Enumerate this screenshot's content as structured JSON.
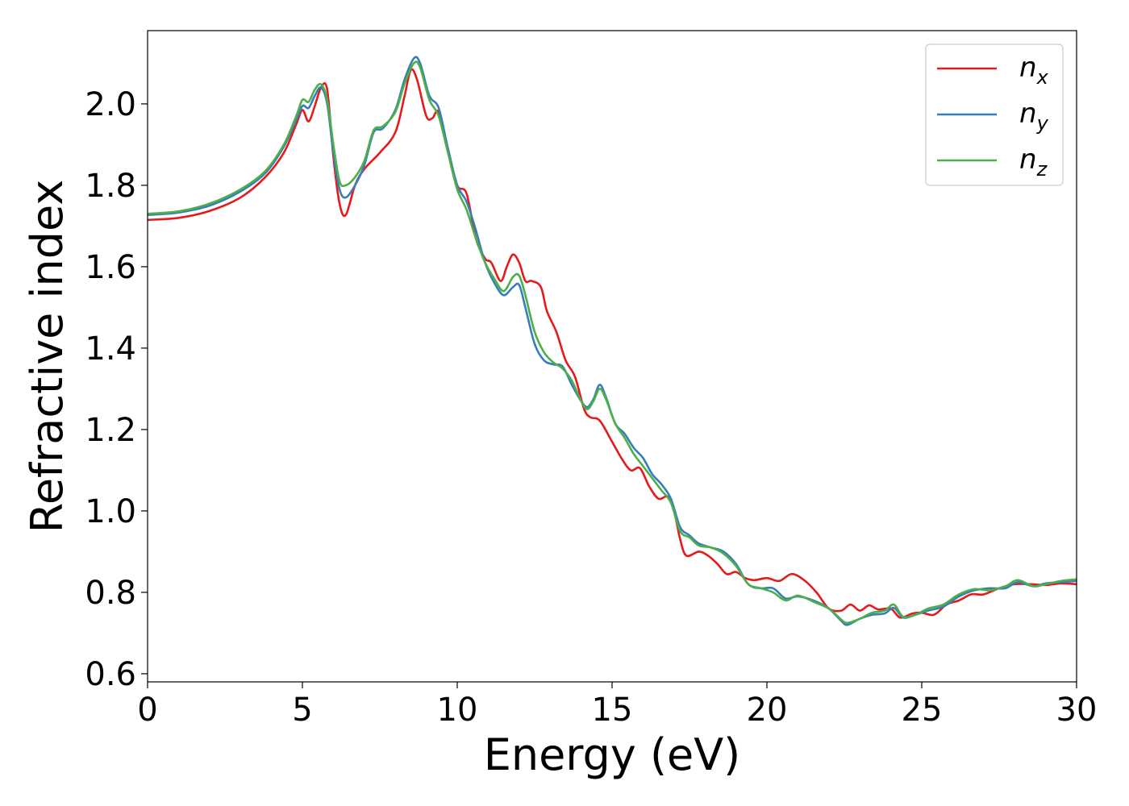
{
  "chart_data": {
    "type": "line",
    "xlabel": "Energy (eV)",
    "ylabel": "Refractive index",
    "xlim": [
      0,
      30
    ],
    "ylim": [
      0.58,
      2.18
    ],
    "x_ticks": [
      0,
      5,
      10,
      15,
      20,
      25,
      30
    ],
    "y_ticks": [
      0.6,
      0.8,
      1.0,
      1.2,
      1.4,
      1.6,
      1.8,
      2.0
    ],
    "x_tick_labels": [
      "0",
      "5",
      "10",
      "15",
      "20",
      "25",
      "30"
    ],
    "y_tick_labels": [
      "0.6",
      "0.8",
      "1.0",
      "1.2",
      "1.4",
      "1.6",
      "1.8",
      "2.0"
    ],
    "grid": false,
    "legend_position": "top-right",
    "series": [
      {
        "name": "n_x",
        "legend_base": "n",
        "legend_sub": "x",
        "color": "#e41a1c",
        "points": [
          [
            0,
            1.715
          ],
          [
            1,
            1.72
          ],
          [
            2,
            1.737
          ],
          [
            3,
            1.77
          ],
          [
            3.8,
            1.82
          ],
          [
            4.4,
            1.88
          ],
          [
            4.8,
            1.95
          ],
          [
            5.0,
            1.985
          ],
          [
            5.2,
            1.957
          ],
          [
            5.4,
            1.995
          ],
          [
            5.6,
            2.04
          ],
          [
            5.8,
            2.035
          ],
          [
            6.0,
            1.87
          ],
          [
            6.2,
            1.755
          ],
          [
            6.4,
            1.727
          ],
          [
            6.7,
            1.8
          ],
          [
            7.0,
            1.84
          ],
          [
            7.5,
            1.88
          ],
          [
            8.0,
            1.93
          ],
          [
            8.3,
            2.02
          ],
          [
            8.5,
            2.083
          ],
          [
            8.7,
            2.06
          ],
          [
            9.0,
            1.97
          ],
          [
            9.2,
            1.965
          ],
          [
            9.4,
            1.98
          ],
          [
            9.7,
            1.89
          ],
          [
            10.0,
            1.8
          ],
          [
            10.3,
            1.78
          ],
          [
            10.6,
            1.67
          ],
          [
            10.9,
            1.62
          ],
          [
            11.1,
            1.61
          ],
          [
            11.4,
            1.565
          ],
          [
            11.6,
            1.6
          ],
          [
            11.8,
            1.63
          ],
          [
            12.0,
            1.61
          ],
          [
            12.2,
            1.565
          ],
          [
            12.4,
            1.565
          ],
          [
            12.7,
            1.55
          ],
          [
            12.9,
            1.49
          ],
          [
            13.2,
            1.44
          ],
          [
            13.5,
            1.37
          ],
          [
            13.8,
            1.33
          ],
          [
            14.1,
            1.25
          ],
          [
            14.3,
            1.23
          ],
          [
            14.6,
            1.222
          ],
          [
            15.0,
            1.17
          ],
          [
            15.3,
            1.13
          ],
          [
            15.6,
            1.1
          ],
          [
            15.9,
            1.105
          ],
          [
            16.2,
            1.06
          ],
          [
            16.5,
            1.03
          ],
          [
            16.8,
            1.035
          ],
          [
            17.0,
            1.0
          ],
          [
            17.2,
            0.93
          ],
          [
            17.4,
            0.89
          ],
          [
            17.8,
            0.9
          ],
          [
            18.1,
            0.89
          ],
          [
            18.4,
            0.87
          ],
          [
            18.7,
            0.845
          ],
          [
            19.0,
            0.85
          ],
          [
            19.3,
            0.835
          ],
          [
            19.6,
            0.83
          ],
          [
            20.0,
            0.835
          ],
          [
            20.4,
            0.828
          ],
          [
            20.8,
            0.845
          ],
          [
            21.2,
            0.83
          ],
          [
            21.6,
            0.8
          ],
          [
            22.0,
            0.76
          ],
          [
            22.4,
            0.755
          ],
          [
            22.7,
            0.77
          ],
          [
            23.0,
            0.755
          ],
          [
            23.3,
            0.768
          ],
          [
            23.6,
            0.758
          ],
          [
            24.0,
            0.76
          ],
          [
            24.3,
            0.738
          ],
          [
            24.7,
            0.748
          ],
          [
            25.0,
            0.75
          ],
          [
            25.4,
            0.745
          ],
          [
            25.8,
            0.77
          ],
          [
            26.2,
            0.78
          ],
          [
            26.6,
            0.795
          ],
          [
            27.0,
            0.795
          ],
          [
            27.5,
            0.81
          ],
          [
            28.0,
            0.82
          ],
          [
            28.5,
            0.82
          ],
          [
            29.0,
            0.818
          ],
          [
            29.5,
            0.822
          ],
          [
            30.0,
            0.82
          ]
        ]
      },
      {
        "name": "n_y",
        "legend_base": "n",
        "legend_sub": "y",
        "color": "#377eb8",
        "points": [
          [
            0,
            1.727
          ],
          [
            1,
            1.733
          ],
          [
            2,
            1.75
          ],
          [
            3,
            1.785
          ],
          [
            3.8,
            1.83
          ],
          [
            4.4,
            1.895
          ],
          [
            4.8,
            1.96
          ],
          [
            5.0,
            1.995
          ],
          [
            5.2,
            1.99
          ],
          [
            5.4,
            2.02
          ],
          [
            5.6,
            2.04
          ],
          [
            5.8,
            2.0
          ],
          [
            6.0,
            1.88
          ],
          [
            6.2,
            1.79
          ],
          [
            6.4,
            1.77
          ],
          [
            6.7,
            1.8
          ],
          [
            7.0,
            1.85
          ],
          [
            7.3,
            1.93
          ],
          [
            7.6,
            1.94
          ],
          [
            8.0,
            1.985
          ],
          [
            8.3,
            2.06
          ],
          [
            8.6,
            2.112
          ],
          [
            8.8,
            2.1
          ],
          [
            9.1,
            2.02
          ],
          [
            9.4,
            1.99
          ],
          [
            9.7,
            1.89
          ],
          [
            10.0,
            1.8
          ],
          [
            10.3,
            1.76
          ],
          [
            10.6,
            1.69
          ],
          [
            10.9,
            1.61
          ],
          [
            11.2,
            1.56
          ],
          [
            11.5,
            1.53
          ],
          [
            11.8,
            1.55
          ],
          [
            12.0,
            1.555
          ],
          [
            12.2,
            1.5
          ],
          [
            12.5,
            1.41
          ],
          [
            12.8,
            1.37
          ],
          [
            13.1,
            1.36
          ],
          [
            13.4,
            1.355
          ],
          [
            13.7,
            1.31
          ],
          [
            14.0,
            1.27
          ],
          [
            14.2,
            1.255
          ],
          [
            14.4,
            1.275
          ],
          [
            14.6,
            1.31
          ],
          [
            14.8,
            1.28
          ],
          [
            15.1,
            1.215
          ],
          [
            15.4,
            1.19
          ],
          [
            15.7,
            1.155
          ],
          [
            16.0,
            1.13
          ],
          [
            16.3,
            1.09
          ],
          [
            16.6,
            1.065
          ],
          [
            16.9,
            1.03
          ],
          [
            17.2,
            0.96
          ],
          [
            17.5,
            0.94
          ],
          [
            17.8,
            0.92
          ],
          [
            18.2,
            0.91
          ],
          [
            18.6,
            0.9
          ],
          [
            19.0,
            0.87
          ],
          [
            19.4,
            0.82
          ],
          [
            19.8,
            0.81
          ],
          [
            20.2,
            0.81
          ],
          [
            20.6,
            0.785
          ],
          [
            21.0,
            0.79
          ],
          [
            21.5,
            0.78
          ],
          [
            22.0,
            0.76
          ],
          [
            22.4,
            0.73
          ],
          [
            22.6,
            0.72
          ],
          [
            23.0,
            0.735
          ],
          [
            23.4,
            0.745
          ],
          [
            23.8,
            0.748
          ],
          [
            24.1,
            0.762
          ],
          [
            24.4,
            0.738
          ],
          [
            24.8,
            0.745
          ],
          [
            25.2,
            0.755
          ],
          [
            25.7,
            0.765
          ],
          [
            26.2,
            0.79
          ],
          [
            26.7,
            0.805
          ],
          [
            27.2,
            0.81
          ],
          [
            27.7,
            0.81
          ],
          [
            28.1,
            0.825
          ],
          [
            28.6,
            0.815
          ],
          [
            29.0,
            0.822
          ],
          [
            29.5,
            0.825
          ],
          [
            30.0,
            0.828
          ]
        ]
      },
      {
        "name": "n_z",
        "legend_base": "n",
        "legend_sub": "z",
        "color": "#4daf4a",
        "points": [
          [
            0,
            1.73
          ],
          [
            1,
            1.736
          ],
          [
            2,
            1.755
          ],
          [
            3,
            1.79
          ],
          [
            3.8,
            1.835
          ],
          [
            4.4,
            1.9
          ],
          [
            4.8,
            1.97
          ],
          [
            5.0,
            2.01
          ],
          [
            5.2,
            2.005
          ],
          [
            5.4,
            2.035
          ],
          [
            5.6,
            2.048
          ],
          [
            5.8,
            2.01
          ],
          [
            6.0,
            1.9
          ],
          [
            6.2,
            1.81
          ],
          [
            6.4,
            1.8
          ],
          [
            6.7,
            1.82
          ],
          [
            7.0,
            1.86
          ],
          [
            7.3,
            1.935
          ],
          [
            7.6,
            1.945
          ],
          [
            8.0,
            1.98
          ],
          [
            8.3,
            2.05
          ],
          [
            8.6,
            2.1
          ],
          [
            8.8,
            2.09
          ],
          [
            9.1,
            2.01
          ],
          [
            9.4,
            1.97
          ],
          [
            9.7,
            1.88
          ],
          [
            10.0,
            1.79
          ],
          [
            10.3,
            1.74
          ],
          [
            10.6,
            1.67
          ],
          [
            10.9,
            1.61
          ],
          [
            11.2,
            1.57
          ],
          [
            11.5,
            1.54
          ],
          [
            11.8,
            1.575
          ],
          [
            12.0,
            1.578
          ],
          [
            12.2,
            1.53
          ],
          [
            12.5,
            1.44
          ],
          [
            12.8,
            1.39
          ],
          [
            13.1,
            1.365
          ],
          [
            13.4,
            1.35
          ],
          [
            13.7,
            1.32
          ],
          [
            14.0,
            1.27
          ],
          [
            14.2,
            1.25
          ],
          [
            14.4,
            1.27
          ],
          [
            14.6,
            1.3
          ],
          [
            14.8,
            1.275
          ],
          [
            15.1,
            1.215
          ],
          [
            15.4,
            1.18
          ],
          [
            15.7,
            1.14
          ],
          [
            16.0,
            1.11
          ],
          [
            16.3,
            1.08
          ],
          [
            16.6,
            1.05
          ],
          [
            16.9,
            1.02
          ],
          [
            17.2,
            0.95
          ],
          [
            17.5,
            0.935
          ],
          [
            17.8,
            0.915
          ],
          [
            18.2,
            0.91
          ],
          [
            18.6,
            0.895
          ],
          [
            19.0,
            0.865
          ],
          [
            19.4,
            0.82
          ],
          [
            19.8,
            0.81
          ],
          [
            20.2,
            0.8
          ],
          [
            20.6,
            0.78
          ],
          [
            21.0,
            0.792
          ],
          [
            21.5,
            0.777
          ],
          [
            22.0,
            0.76
          ],
          [
            22.4,
            0.733
          ],
          [
            22.6,
            0.725
          ],
          [
            23.0,
            0.735
          ],
          [
            23.4,
            0.75
          ],
          [
            23.8,
            0.755
          ],
          [
            24.1,
            0.77
          ],
          [
            24.4,
            0.74
          ],
          [
            24.8,
            0.745
          ],
          [
            25.2,
            0.76
          ],
          [
            25.7,
            0.77
          ],
          [
            26.2,
            0.795
          ],
          [
            26.7,
            0.808
          ],
          [
            27.2,
            0.805
          ],
          [
            27.7,
            0.815
          ],
          [
            28.1,
            0.83
          ],
          [
            28.6,
            0.815
          ],
          [
            29.0,
            0.82
          ],
          [
            29.5,
            0.828
          ],
          [
            30.0,
            0.832
          ]
        ]
      }
    ]
  }
}
